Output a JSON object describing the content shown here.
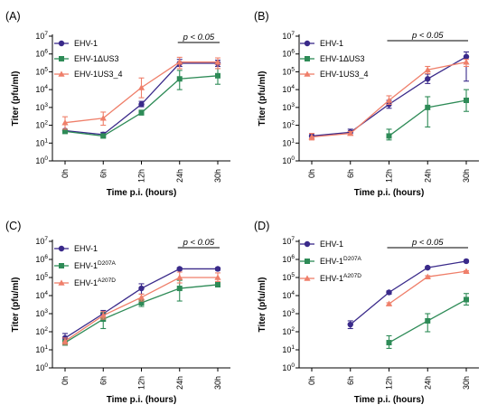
{
  "colors": {
    "EHV-1": "#3a2a8a",
    "deletion": "#2e8b57",
    "revertant": "#ef7f6a"
  },
  "chart_data": [
    {
      "type": "line",
      "panel_label": "(A)",
      "xlabel": "Time p.i. (hours)",
      "ylabel": "Titer (pfu/ml)",
      "categories": [
        "0h",
        "6h",
        "12h",
        "24h",
        "30h"
      ],
      "y_scale": "log",
      "ylim": [
        1,
        10000000
      ],
      "y_ticks": [
        {
          "base": "10",
          "exp": "0"
        },
        {
          "base": "10",
          "exp": "1"
        },
        {
          "base": "10",
          "exp": "2"
        },
        {
          "base": "10",
          "exp": "3"
        },
        {
          "base": "10",
          "exp": "4"
        },
        {
          "base": "10",
          "exp": "5"
        },
        {
          "base": "10",
          "exp": "6"
        },
        {
          "base": "10",
          "exp": "7"
        }
      ],
      "significance": {
        "text": "p < 0.05",
        "from": "24h",
        "to": "30h"
      },
      "legend_position": "top-left",
      "series": [
        {
          "name": "EHV-1",
          "name_base": "EHV-1",
          "name_sup": "",
          "color_key": "EHV-1",
          "marker": "circle",
          "values": [
            50,
            30,
            1500,
            300000,
            300000
          ],
          "errors": [
            [
              40,
              60
            ],
            [
              25,
              40
            ],
            [
              1100,
              2200
            ],
            [
              200000,
              500000
            ],
            [
              200000,
              450000
            ]
          ]
        },
        {
          "name": "EHV-1ΔUS3",
          "name_base": "EHV-1ΔUS3",
          "name_sup": "",
          "color_key": "deletion",
          "marker": "square",
          "values": [
            45,
            25,
            500,
            40000,
            60000
          ],
          "errors": [
            [
              40,
              55
            ],
            [
              20,
              30
            ],
            [
              380,
              700
            ],
            [
              10000,
              120000
            ],
            [
              20000,
              150000
            ]
          ]
        },
        {
          "name": "EHV-1US3_4",
          "name_base": "EHV-1US3_4",
          "name_sup": "",
          "color_key": "revertant",
          "marker": "triangle",
          "values": [
            140,
            250,
            13000,
            350000,
            350000
          ],
          "errors": [
            [
              60,
              300
            ],
            [
              100,
              550
            ],
            [
              3500,
              45000
            ],
            [
              150000,
              650000
            ],
            [
              150000,
              600000
            ]
          ]
        }
      ]
    },
    {
      "type": "line",
      "panel_label": "(B)",
      "xlabel": "Time p.i. (hours)",
      "ylabel": "Titer (pfu/ml)",
      "categories": [
        "0h",
        "6h",
        "12h",
        "24h",
        "30h"
      ],
      "y_scale": "log",
      "ylim": [
        1,
        10000000
      ],
      "y_ticks": [
        {
          "base": "10",
          "exp": "0"
        },
        {
          "base": "10",
          "exp": "1"
        },
        {
          "base": "10",
          "exp": "2"
        },
        {
          "base": "10",
          "exp": "3"
        },
        {
          "base": "10",
          "exp": "4"
        },
        {
          "base": "10",
          "exp": "5"
        },
        {
          "base": "10",
          "exp": "6"
        },
        {
          "base": "10",
          "exp": "7"
        }
      ],
      "significance": {
        "text": "p < 0.05",
        "from": "12h",
        "to": "30h"
      },
      "legend_position": "top-left",
      "series": [
        {
          "name": "EHV-1",
          "name_base": "EHV-1",
          "name_sup": "",
          "color_key": "EHV-1",
          "marker": "circle",
          "values": [
            25,
            40,
            1500,
            40000,
            700000
          ],
          "errors": [
            [
              18,
              35
            ],
            [
              28,
              60
            ],
            [
              900,
              2500
            ],
            [
              22000,
              75000
            ],
            [
              30000,
              1300000
            ]
          ]
        },
        {
          "name": "EHV-1ΔUS3",
          "name_base": "EHV-1ΔUS3",
          "name_sup": "",
          "color_key": "deletion",
          "marker": "square",
          "values": [
            null,
            null,
            25,
            1000,
            2500
          ],
          "errors": [
            null,
            null,
            [
              15,
              60
            ],
            [
              80,
              4000
            ],
            [
              600,
              10000
            ]
          ]
        },
        {
          "name": "EHV-1US3_4",
          "name_base": "EHV-1US3_4",
          "name_sup": "",
          "color_key": "revertant",
          "marker": "triangle",
          "values": [
            22,
            35,
            2500,
            130000,
            350000
          ],
          "errors": [
            [
              15,
              35
            ],
            [
              28,
              45
            ],
            [
              1500,
              4500
            ],
            [
              80000,
              200000
            ],
            [
              200000,
              500000
            ]
          ]
        }
      ]
    },
    {
      "type": "line",
      "panel_label": "(C)",
      "xlabel": "Time p.i. (hours)",
      "ylabel": "Titer (pfu/ml)",
      "categories": [
        "0h",
        "6h",
        "12h",
        "24h",
        "30h"
      ],
      "y_scale": "log",
      "ylim": [
        1,
        10000000
      ],
      "y_ticks": [
        {
          "base": "10",
          "exp": "0"
        },
        {
          "base": "10",
          "exp": "1"
        },
        {
          "base": "10",
          "exp": "2"
        },
        {
          "base": "10",
          "exp": "3"
        },
        {
          "base": "10",
          "exp": "4"
        },
        {
          "base": "10",
          "exp": "5"
        },
        {
          "base": "10",
          "exp": "6"
        },
        {
          "base": "10",
          "exp": "7"
        }
      ],
      "significance": {
        "text": "p < 0.05",
        "from": "24h",
        "to": "30h"
      },
      "legend_position": "top-left",
      "series": [
        {
          "name": "EHV-1",
          "name_base": "EHV-1",
          "name_sup": "",
          "color_key": "EHV-1",
          "marker": "circle",
          "values": [
            45,
            1000,
            25000,
            300000,
            300000
          ],
          "errors": [
            [
              30,
              80
            ],
            [
              600,
              1500
            ],
            [
              12000,
              45000
            ],
            [
              250000,
              350000
            ],
            [
              250000,
              350000
            ]
          ]
        },
        {
          "name": "EHV-1D207A",
          "name_base": "EHV-1",
          "name_sup": "D207A",
          "color_key": "deletion",
          "marker": "square",
          "values": [
            25,
            500,
            4000,
            25000,
            40000
          ],
          "errors": [
            [
              18,
              35
            ],
            [
              150,
              1100
            ],
            [
              2500,
              6000
            ],
            [
              5000,
              70000
            ],
            [
              30000,
              55000
            ]
          ]
        },
        {
          "name": "EHV-1A207D",
          "name_base": "EHV-1",
          "name_sup": "A207D",
          "color_key": "revertant",
          "marker": "triangle",
          "values": [
            30,
            800,
            8000,
            100000,
            100000
          ],
          "errors": [
            [
              20,
              45
            ],
            [
              500,
              1300
            ],
            [
              5000,
              12000
            ],
            [
              50000,
              200000
            ],
            [
              60000,
              180000
            ]
          ]
        }
      ]
    },
    {
      "type": "line",
      "panel_label": "(D)",
      "xlabel": "Time p.i. (hours)",
      "ylabel": "Titer (pfu/ml)",
      "categories": [
        "0h",
        "6h",
        "12h",
        "24h",
        "30h"
      ],
      "y_scale": "log",
      "ylim": [
        1,
        10000000
      ],
      "y_ticks": [
        {
          "base": "10",
          "exp": "0"
        },
        {
          "base": "10",
          "exp": "1"
        },
        {
          "base": "10",
          "exp": "2"
        },
        {
          "base": "10",
          "exp": "3"
        },
        {
          "base": "10",
          "exp": "4"
        },
        {
          "base": "10",
          "exp": "5"
        },
        {
          "base": "10",
          "exp": "6"
        },
        {
          "base": "10",
          "exp": "7"
        }
      ],
      "significance": {
        "text": "p < 0.05",
        "from": "12h",
        "to": "30h"
      },
      "legend_position": "top-left",
      "series": [
        {
          "name": "EHV-1",
          "name_base": "EHV-1",
          "name_sup": "",
          "color_key": "EHV-1",
          "marker": "circle",
          "values": [
            null,
            250,
            15000,
            350000,
            800000
          ],
          "errors": [
            null,
            [
              150,
              400
            ],
            [
              12000,
              18000
            ],
            [
              300000,
              400000
            ],
            [
              700000,
              900000
            ]
          ]
        },
        {
          "name": "EHV-1D207A",
          "name_base": "EHV-1",
          "name_sup": "D207A",
          "color_key": "deletion",
          "marker": "square",
          "values": [
            null,
            null,
            25,
            400,
            6000
          ],
          "errors": [
            null,
            null,
            [
              12,
              60
            ],
            [
              100,
              1000
            ],
            [
              3000,
              13000
            ]
          ]
        },
        {
          "name": "EHV-1A207D",
          "name_base": "EHV-1",
          "name_sup": "A207D",
          "color_key": "revertant",
          "marker": "triangle",
          "values": [
            null,
            null,
            3500,
            110000,
            220000
          ],
          "errors": [
            null,
            null,
            [
              3000,
              4000
            ],
            [
              95000,
              125000
            ],
            [
              200000,
              240000
            ]
          ]
        }
      ]
    }
  ]
}
